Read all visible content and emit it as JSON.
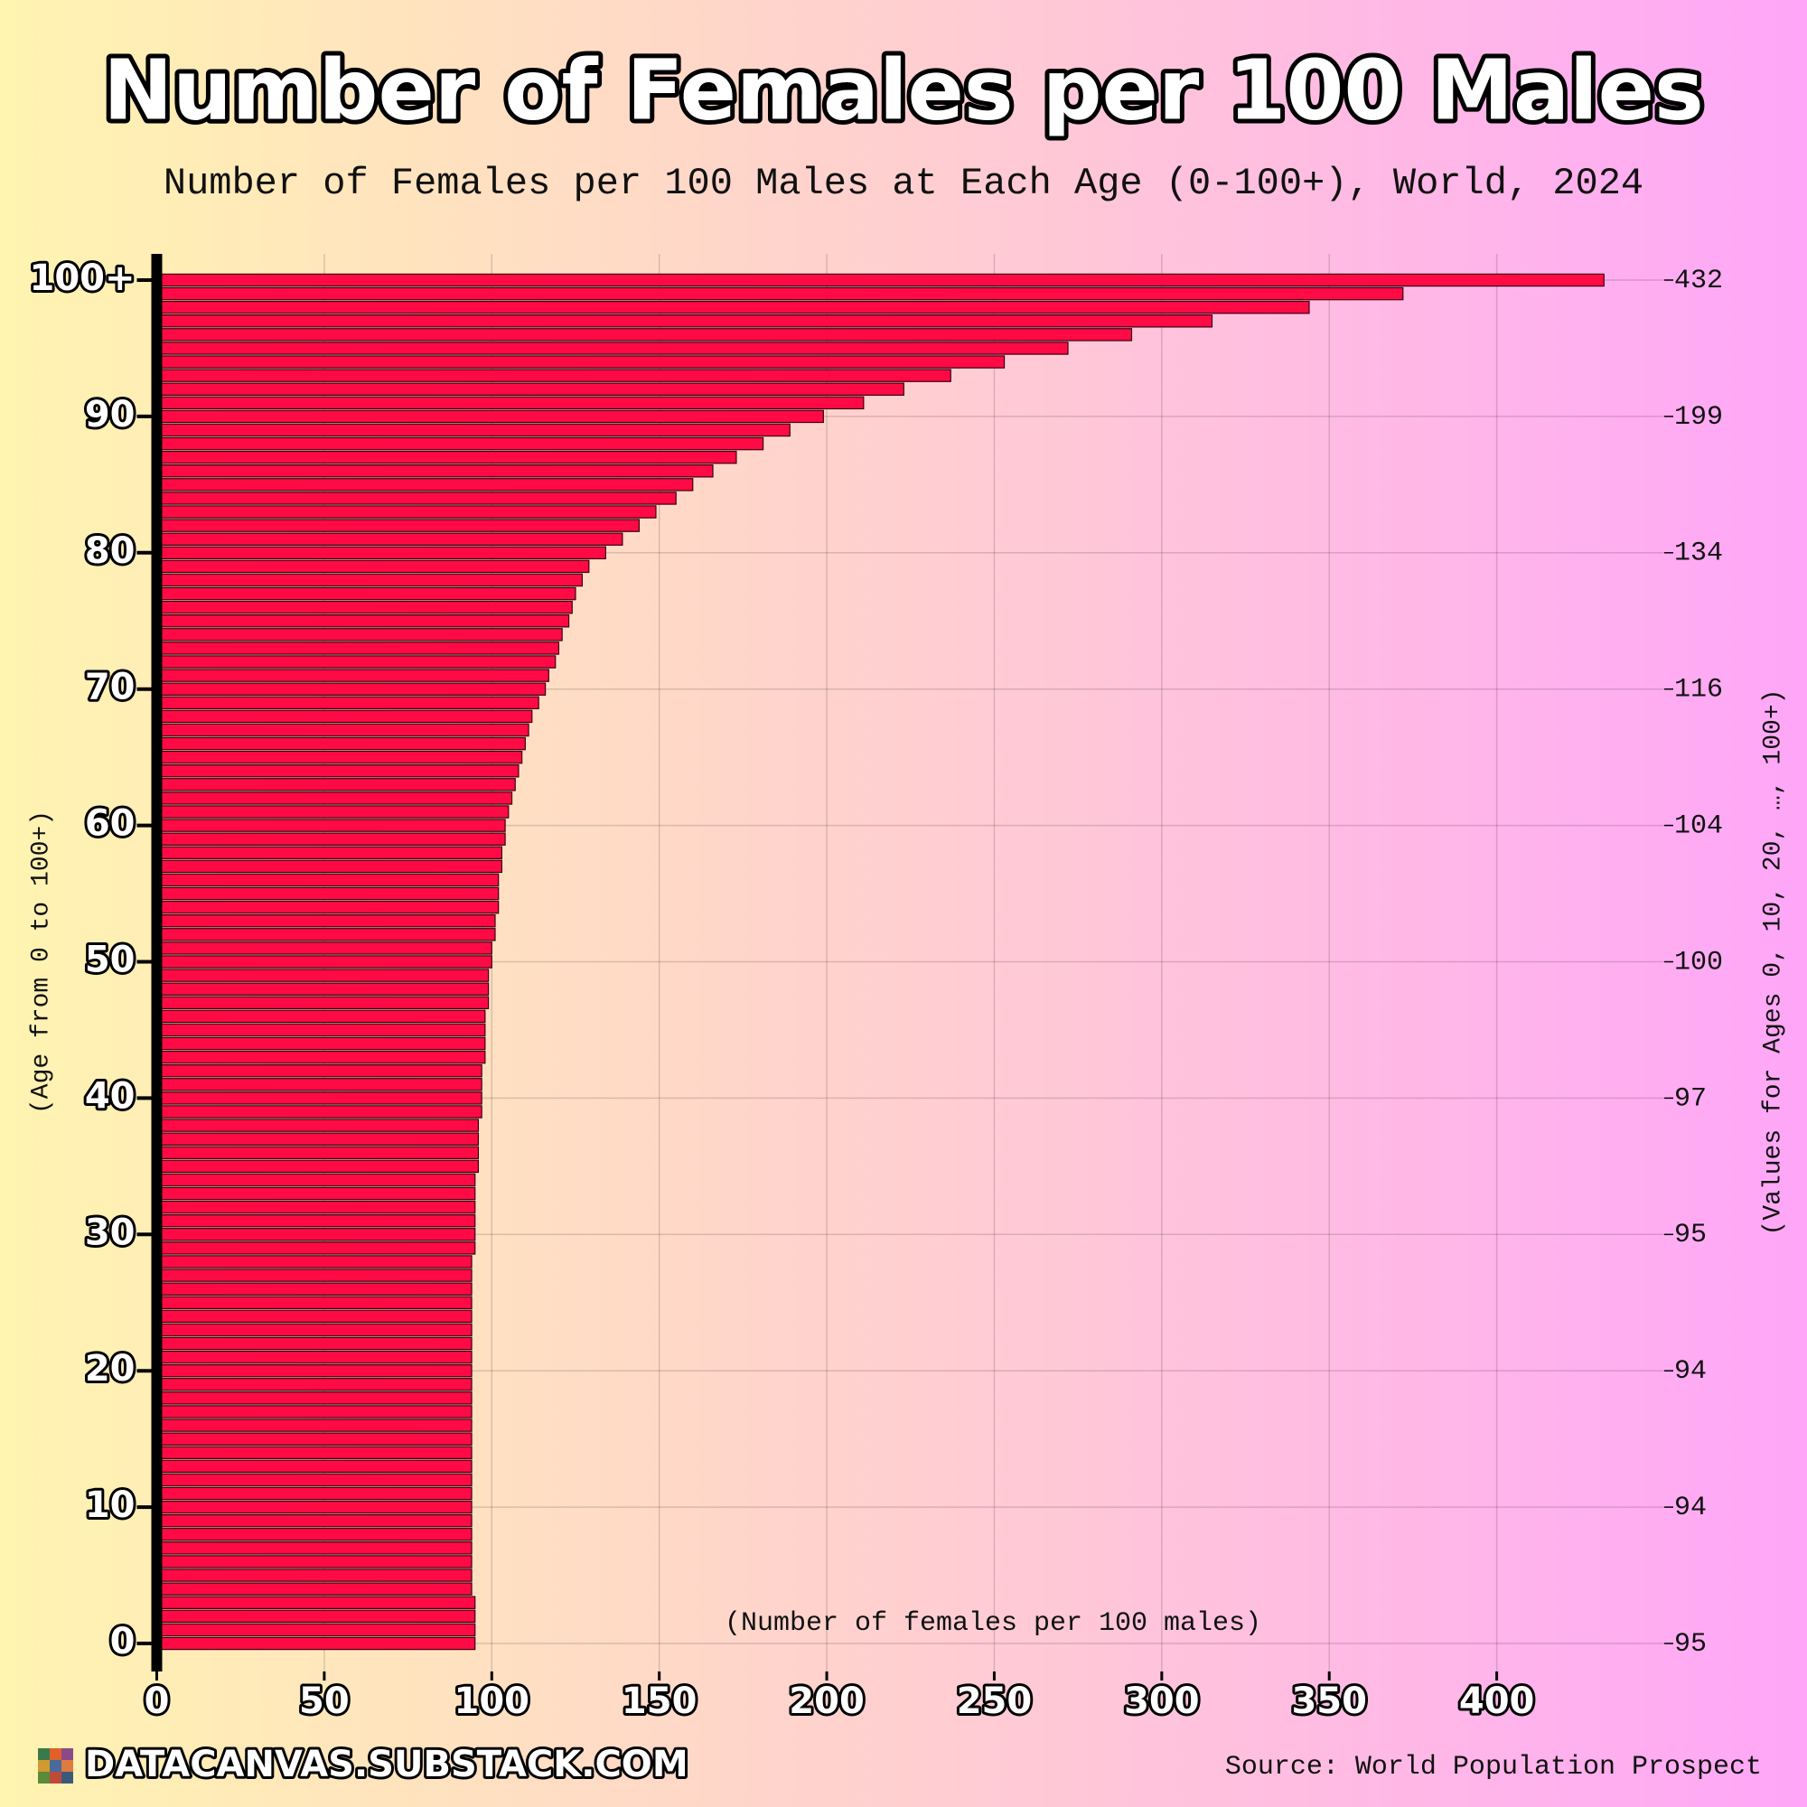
{
  "chart_data": {
    "type": "barh",
    "title": "Number of Females per 100 Males",
    "subtitle": "Number of Females per 100 Males at Each Age (0-100+), World, 2024",
    "ylabel": "(Age from 0 to 100+)",
    "xlabel": "(Number of females per 100 males)",
    "right_label": "(Values for Ages 0, 10, 20, …, 100+)",
    "source": "Source: World Population Prospect",
    "brand": "DATACANVAS.SUBSTACK.COM",
    "color": "#ff0a45",
    "grid": true,
    "categories": [
      "0",
      null,
      null,
      null,
      null,
      null,
      null,
      null,
      null,
      null,
      "10",
      null,
      null,
      null,
      null,
      null,
      null,
      null,
      null,
      null,
      "20",
      null,
      null,
      null,
      null,
      null,
      null,
      null,
      null,
      null,
      "30",
      null,
      null,
      null,
      null,
      null,
      null,
      null,
      null,
      null,
      "40",
      null,
      null,
      null,
      null,
      null,
      null,
      null,
      null,
      null,
      "50",
      null,
      null,
      null,
      null,
      null,
      null,
      null,
      null,
      null,
      "60",
      null,
      null,
      null,
      null,
      null,
      null,
      null,
      null,
      null,
      "70",
      null,
      null,
      null,
      null,
      null,
      null,
      null,
      null,
      null,
      "80",
      null,
      null,
      null,
      null,
      null,
      null,
      null,
      null,
      null,
      "90",
      null,
      null,
      null,
      null,
      null,
      null,
      null,
      null,
      null,
      "100+"
    ],
    "values": [
      95,
      95,
      95,
      95,
      94,
      94,
      94,
      94,
      94,
      94,
      94,
      94,
      94,
      94,
      94,
      94,
      94,
      94,
      94,
      94,
      94,
      94,
      94,
      94,
      94,
      94,
      94,
      94,
      94,
      95,
      95,
      95,
      95,
      95,
      95,
      96,
      96,
      96,
      96,
      97,
      97,
      97,
      97,
      98,
      98,
      98,
      98,
      99,
      99,
      99,
      100,
      100,
      101,
      101,
      102,
      102,
      102,
      103,
      103,
      104,
      104,
      105,
      106,
      107,
      108,
      109,
      110,
      111,
      112,
      114,
      116,
      117,
      119,
      120,
      121,
      123,
      124,
      125,
      127,
      129,
      134,
      139,
      144,
      149,
      155,
      160,
      166,
      173,
      181,
      189,
      199,
      211,
      223,
      237,
      253,
      272,
      291,
      315,
      344,
      372,
      432
    ],
    "xlim": [
      0,
      450
    ],
    "xticks": [
      0,
      50,
      100,
      150,
      200,
      250,
      300,
      350,
      400
    ]
  }
}
